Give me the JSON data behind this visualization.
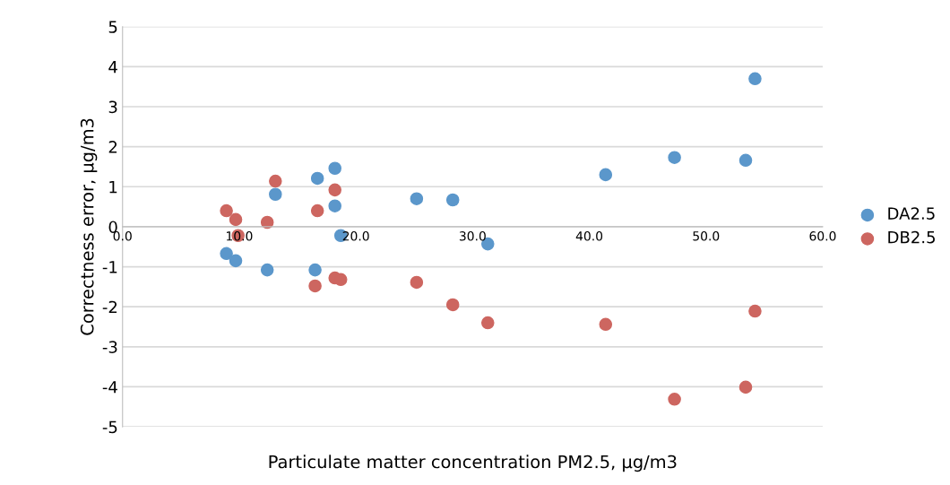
{
  "chart_data": {
    "type": "scatter",
    "xlabel": "Particulate matter concentration PM2.5, µg/m3",
    "ylabel": "Correctness error, µg/m3",
    "xlim": [
      0,
      60
    ],
    "xticks": [
      {
        "value": 0,
        "label": "0.0"
      },
      {
        "value": 10,
        "label": "10.0"
      },
      {
        "value": 20,
        "label": "20.0"
      },
      {
        "value": 30,
        "label": "30.0"
      },
      {
        "value": 40,
        "label": "40.0"
      },
      {
        "value": 50,
        "label": "50.0"
      },
      {
        "value": 60,
        "label": "60.0"
      }
    ],
    "ylim": [
      -5,
      5
    ],
    "yticks": [
      -5,
      -4,
      -3,
      -2,
      -1,
      0,
      1,
      2,
      3,
      4,
      5
    ],
    "grid": "y",
    "legend": "right",
    "marker": "circle",
    "series": [
      {
        "name": "DA2.5",
        "color": "#5b97cb",
        "x": [
          8.9,
          9.7,
          12.4,
          13.1,
          16.5,
          16.7,
          18.2,
          18.2,
          18.7,
          25.2,
          28.3,
          31.3,
          41.4,
          47.3,
          53.4,
          54.2
        ],
        "values": [
          -0.67,
          -0.85,
          -1.08,
          0.81,
          -1.08,
          1.21,
          1.46,
          0.52,
          -0.22,
          0.7,
          0.67,
          -0.43,
          1.3,
          1.73,
          1.66,
          3.7
        ]
      },
      {
        "name": "DB2.5",
        "color": "#cd6660",
        "x": [
          8.9,
          9.7,
          9.9,
          12.4,
          13.1,
          16.5,
          16.7,
          18.2,
          18.2,
          18.7,
          25.2,
          28.3,
          31.3,
          41.4,
          47.3,
          53.4,
          54.2
        ],
        "values": [
          0.4,
          0.18,
          -0.22,
          0.11,
          1.14,
          -1.48,
          0.4,
          0.92,
          -1.28,
          -1.32,
          -1.39,
          -1.95,
          -2.4,
          -2.44,
          -4.31,
          -4.01,
          -2.11
        ]
      }
    ]
  }
}
